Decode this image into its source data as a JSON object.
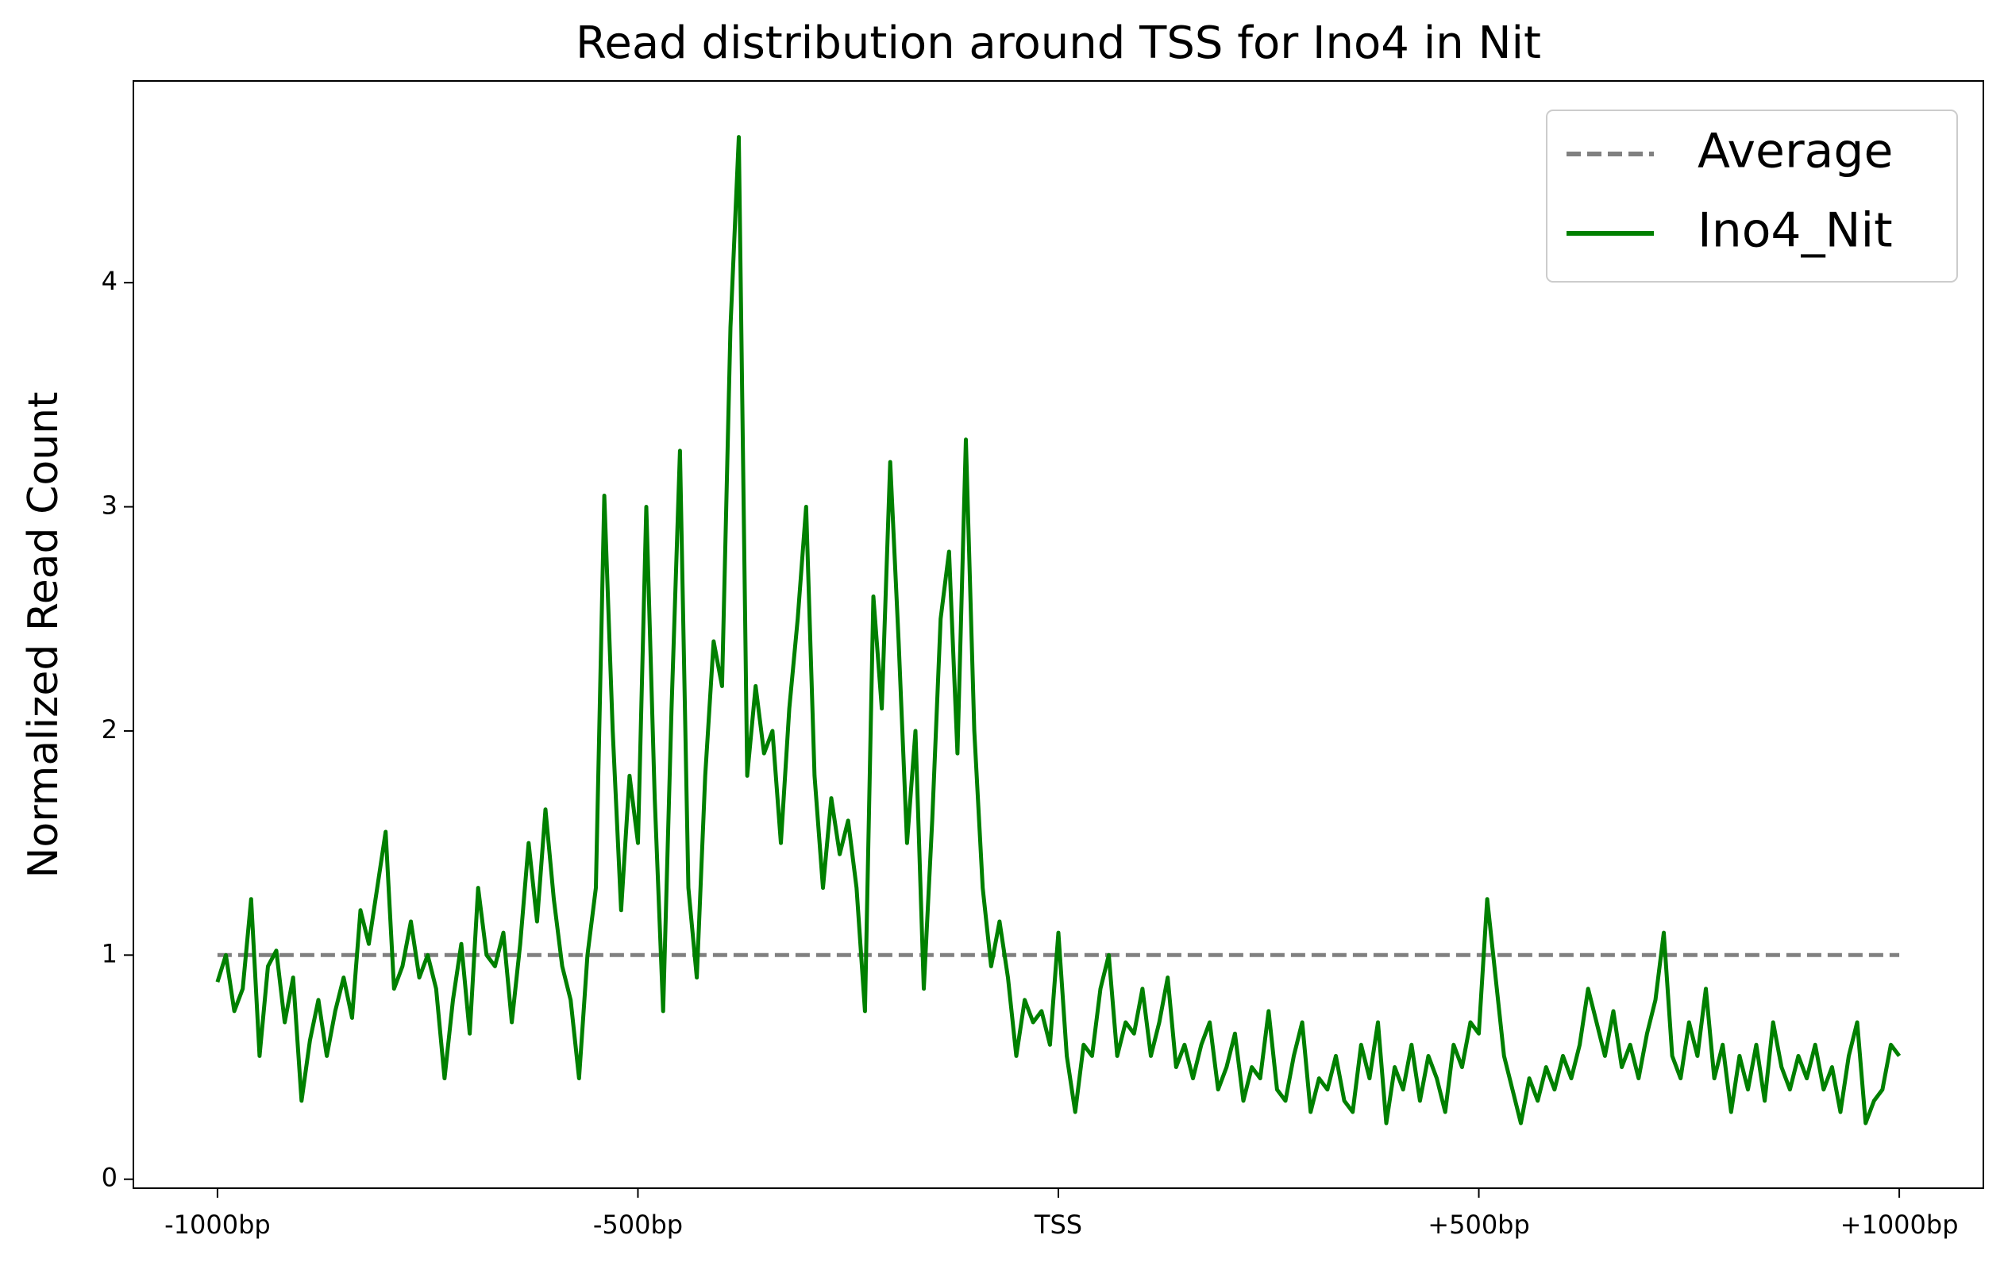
{
  "chart_data": {
    "type": "line",
    "title": "Read distribution around TSS for Ino4 in Nit",
    "y_label": "Normalized Read Count",
    "xlim": [
      -1100,
      1100
    ],
    "ylim": [
      -0.04,
      4.9
    ],
    "xticks": [
      {
        "value": -1000,
        "label": "-1000bp"
      },
      {
        "value": -500,
        "label": "-500bp"
      },
      {
        "value": 0,
        "label": "TSS"
      },
      {
        "value": 500,
        "label": "+500bp"
      },
      {
        "value": 1000,
        "label": "+1000bp"
      }
    ],
    "yticks": [
      0,
      1,
      2,
      3,
      4
    ],
    "legend": "upper right",
    "series": [
      {
        "name": "Average",
        "color": "#808080",
        "dashed": true,
        "x": [
          -1000,
          1000
        ],
        "values": [
          1,
          1
        ]
      },
      {
        "name": "Ino4_Nit",
        "color": "#008000",
        "dashed": false,
        "x": [
          -1000,
          -990,
          -980,
          -970,
          -960,
          -950,
          -940,
          -930,
          -920,
          -910,
          -900,
          -890,
          -880,
          -870,
          -860,
          -850,
          -840,
          -830,
          -820,
          -810,
          -800,
          -790,
          -780,
          -770,
          -760,
          -750,
          -740,
          -730,
          -720,
          -710,
          -700,
          -690,
          -680,
          -670,
          -660,
          -650,
          -640,
          -630,
          -620,
          -610,
          -600,
          -590,
          -580,
          -570,
          -560,
          -550,
          -540,
          -530,
          -520,
          -510,
          -500,
          -490,
          -480,
          -470,
          -460,
          -450,
          -440,
          -430,
          -420,
          -410,
          -400,
          -390,
          -380,
          -370,
          -360,
          -350,
          -340,
          -330,
          -320,
          -310,
          -300,
          -290,
          -280,
          -270,
          -260,
          -250,
          -240,
          -230,
          -220,
          -210,
          -200,
          -190,
          -180,
          -170,
          -160,
          -150,
          -140,
          -130,
          -120,
          -110,
          -100,
          -90,
          -80,
          -70,
          -60,
          -50,
          -40,
          -30,
          -20,
          -10,
          0,
          10,
          20,
          30,
          40,
          50,
          60,
          70,
          80,
          90,
          100,
          110,
          120,
          130,
          140,
          150,
          160,
          170,
          180,
          190,
          200,
          210,
          220,
          230,
          240,
          250,
          260,
          270,
          280,
          290,
          300,
          310,
          320,
          330,
          340,
          350,
          360,
          370,
          380,
          390,
          400,
          410,
          420,
          430,
          440,
          450,
          460,
          470,
          480,
          490,
          500,
          510,
          520,
          530,
          540,
          550,
          560,
          570,
          580,
          590,
          600,
          610,
          620,
          630,
          640,
          650,
          660,
          670,
          680,
          690,
          700,
          710,
          720,
          730,
          740,
          750,
          760,
          770,
          780,
          790,
          800,
          810,
          820,
          830,
          840,
          850,
          860,
          870,
          880,
          890,
          900,
          910,
          920,
          930,
          940,
          950,
          960,
          970,
          980,
          990,
          1000
        ],
        "values": [
          0.88,
          1.0,
          0.75,
          0.85,
          1.25,
          0.55,
          0.95,
          1.02,
          0.7,
          0.9,
          0.35,
          0.62,
          0.8,
          0.55,
          0.75,
          0.9,
          0.72,
          1.2,
          1.05,
          1.3,
          1.55,
          0.85,
          0.95,
          1.15,
          0.9,
          1.0,
          0.85,
          0.45,
          0.8,
          1.05,
          0.65,
          1.3,
          1.0,
          0.95,
          1.1,
          0.7,
          1.05,
          1.5,
          1.15,
          1.65,
          1.25,
          0.95,
          0.8,
          0.45,
          1.0,
          1.3,
          3.05,
          2.0,
          1.2,
          1.8,
          1.5,
          3.0,
          1.7,
          0.75,
          2.1,
          3.25,
          1.3,
          0.9,
          1.8,
          2.4,
          2.2,
          3.8,
          4.65,
          1.8,
          2.2,
          1.9,
          2.0,
          1.5,
          2.1,
          2.5,
          3.0,
          1.8,
          1.3,
          1.7,
          1.45,
          1.6,
          1.3,
          0.75,
          2.6,
          2.1,
          3.2,
          2.4,
          1.5,
          2.0,
          0.85,
          1.6,
          2.5,
          2.8,
          1.9,
          3.3,
          2.0,
          1.3,
          0.95,
          1.15,
          0.9,
          0.55,
          0.8,
          0.7,
          0.75,
          0.6,
          1.1,
          0.55,
          0.3,
          0.6,
          0.55,
          0.85,
          1.0,
          0.55,
          0.7,
          0.65,
          0.85,
          0.55,
          0.7,
          0.9,
          0.5,
          0.6,
          0.45,
          0.6,
          0.7,
          0.4,
          0.5,
          0.65,
          0.35,
          0.5,
          0.45,
          0.75,
          0.4,
          0.35,
          0.55,
          0.7,
          0.3,
          0.45,
          0.4,
          0.55,
          0.35,
          0.3,
          0.6,
          0.45,
          0.7,
          0.25,
          0.5,
          0.4,
          0.6,
          0.35,
          0.55,
          0.45,
          0.3,
          0.6,
          0.5,
          0.7,
          0.65,
          1.25,
          0.9,
          0.55,
          0.4,
          0.25,
          0.45,
          0.35,
          0.5,
          0.4,
          0.55,
          0.45,
          0.6,
          0.85,
          0.7,
          0.55,
          0.75,
          0.5,
          0.6,
          0.45,
          0.65,
          0.8,
          1.1,
          0.55,
          0.45,
          0.7,
          0.55,
          0.85,
          0.45,
          0.6,
          0.3,
          0.55,
          0.4,
          0.6,
          0.35,
          0.7,
          0.5,
          0.4,
          0.55,
          0.45,
          0.6,
          0.4,
          0.5,
          0.3,
          0.55,
          0.7,
          0.25,
          0.35,
          0.4,
          0.6,
          0.55
        ]
      }
    ]
  }
}
